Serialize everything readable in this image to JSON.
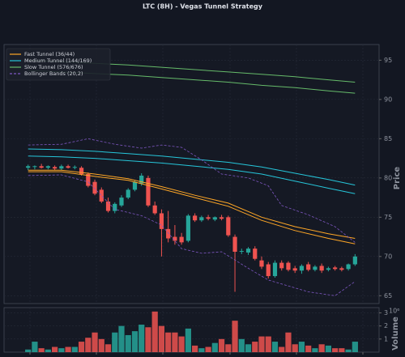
{
  "chart_data": [
    {
      "type": "candlestick",
      "title": "LTC (8H) - Vegas Tunnel Strategy",
      "ylabel": "Price",
      "ylim": [
        64,
        97
      ],
      "yticks": [
        65,
        70,
        75,
        80,
        85,
        90,
        95
      ],
      "xlim": [
        -3.6,
        52.6
      ],
      "grid": true,
      "up_color": "#26a69a",
      "down_color": "#ef5350",
      "legend": "upper left",
      "x": [
        0,
        1,
        2,
        3,
        4,
        5,
        6,
        7,
        8,
        9,
        10,
        11,
        12,
        13,
        14,
        15,
        16,
        17,
        18,
        19,
        20,
        21,
        22,
        23,
        24,
        25,
        26,
        27,
        28,
        29,
        30,
        31,
        32,
        33,
        34,
        35,
        36,
        37,
        38,
        39,
        40,
        41,
        42,
        43,
        44,
        45,
        46,
        47,
        48,
        49
      ],
      "open": [
        81.3,
        81.4,
        81.5,
        81.3,
        81.4,
        81.2,
        81.5,
        81.3,
        81.3,
        80.5,
        79.5,
        78.5,
        77,
        75.8,
        76.5,
        77.5,
        78.5,
        79.3,
        80,
        76.5,
        75.5,
        73.5,
        72.5,
        72.5,
        72,
        75.2,
        74.6,
        75,
        74.7,
        75,
        75,
        72.5,
        70.6,
        70.5,
        71,
        69.5,
        69,
        67.5,
        69.2,
        69.2,
        68.5,
        68.2,
        69,
        68.3,
        68.8,
        68.3,
        68.6,
        68.5,
        68.4,
        69
      ],
      "high": [
        81.7,
        81.6,
        81.8,
        81.6,
        81.6,
        81.7,
        81.7,
        81.6,
        81.5,
        80.7,
        79.8,
        78.8,
        77.5,
        76.9,
        77.8,
        78.7,
        79.7,
        80.6,
        80.3,
        77,
        76,
        75.8,
        74,
        73,
        75.4,
        75.5,
        75.2,
        75.3,
        75.1,
        75.3,
        75.2,
        72.8,
        71,
        71.2,
        71.3,
        70,
        69.3,
        69.5,
        69.5,
        69.4,
        68.8,
        69,
        69.3,
        68.9,
        69.1,
        68.7,
        68.8,
        68.7,
        69.1,
        70.3
      ],
      "low": [
        81,
        81.1,
        81.2,
        81.1,
        81,
        81,
        81.2,
        81.1,
        80.3,
        78.8,
        77.8,
        76.8,
        75.6,
        75.5,
        76.3,
        77.3,
        78.3,
        79,
        76.3,
        75.3,
        70,
        71.8,
        71.5,
        71.5,
        71.8,
        74.4,
        74.4,
        74.6,
        74.5,
        74.6,
        72.5,
        65.5,
        70.3,
        70.2,
        69.5,
        68.4,
        67.2,
        67.3,
        68.2,
        68.1,
        67.9,
        67.8,
        68.1,
        68.1,
        67.9,
        68.1,
        68.2,
        68.1,
        68.2,
        68.8
      ],
      "close": [
        81.5,
        81.5,
        81.3,
        81.5,
        81.2,
        81.5,
        81.3,
        81.4,
        80.5,
        79,
        78,
        77,
        75.8,
        76.7,
        77.5,
        78.5,
        79.5,
        80.3,
        76.5,
        75.5,
        73.5,
        72.3,
        72,
        71.8,
        75.2,
        74.6,
        75,
        74.8,
        75,
        74.8,
        72.7,
        70.6,
        70.7,
        71,
        69.7,
        68.7,
        67.5,
        69.2,
        68.5,
        68.3,
        68.2,
        68.8,
        68.3,
        68.7,
        68.2,
        68.5,
        68.4,
        68.3,
        69,
        70
      ],
      "series": [
        {
          "name": "Fast Tunnel (36/44)",
          "color": "#ffa726",
          "dashed": false,
          "x": [
            0,
            5,
            10,
            15,
            20,
            25,
            30,
            35,
            40,
            45,
            49
          ],
          "upper": [
            81.0,
            81.0,
            80.5,
            79.9,
            78.9,
            77.8,
            76.8,
            75.0,
            73.8,
            72.9,
            72.3
          ],
          "lower": [
            80.8,
            80.8,
            80.2,
            79.7,
            78.6,
            77.5,
            76.4,
            74.6,
            73.3,
            72.3,
            71.6
          ]
        },
        {
          "name": "Medium Tunnel (144/169)",
          "color": "#26c6da",
          "dashed": false,
          "x": [
            0,
            5,
            10,
            15,
            20,
            25,
            30,
            35,
            40,
            45,
            49
          ],
          "upper": [
            83.7,
            83.6,
            83.4,
            83.1,
            82.8,
            82.4,
            82.0,
            81.4,
            80.6,
            79.8,
            79.1
          ],
          "lower": [
            82.8,
            82.7,
            82.5,
            82.2,
            81.9,
            81.5,
            81.1,
            80.5,
            79.6,
            78.7,
            78.0
          ]
        },
        {
          "name": "Slow Tunnel (576/676)",
          "color": "#66bb6a",
          "dashed": false,
          "x": [
            0,
            5,
            10,
            15,
            20,
            25,
            30,
            35,
            40,
            45,
            49
          ],
          "upper": [
            95.0,
            94.8,
            94.6,
            94.4,
            94.1,
            93.8,
            93.5,
            93.2,
            92.9,
            92.5,
            92.2
          ],
          "lower": [
            93.7,
            93.5,
            93.3,
            93.1,
            92.8,
            92.5,
            92.2,
            91.8,
            91.5,
            91.1,
            90.8
          ]
        },
        {
          "name": "Bollinger Bands (20,2)",
          "color": "#7e57c2",
          "dashed": true,
          "x": [
            0,
            5,
            9,
            13,
            17,
            20,
            23,
            26,
            29,
            33,
            36,
            38,
            42,
            46,
            49
          ],
          "upper": [
            84.2,
            84.3,
            85.0,
            84.3,
            83.8,
            84.2,
            83.9,
            82.3,
            80.5,
            80.0,
            79.0,
            76.5,
            75.3,
            73.8,
            71.8
          ],
          "lower": [
            80.3,
            80.4,
            79.5,
            76.0,
            75.2,
            74.0,
            71.0,
            70.4,
            70.6,
            68.5,
            67.0,
            66.5,
            65.5,
            65.0,
            66.8
          ]
        }
      ]
    },
    {
      "type": "bar",
      "ylabel": "Volume",
      "scale_label": "10⁶",
      "ylim": [
        0,
        3.4
      ],
      "yticks": [
        1,
        2,
        3
      ],
      "values": [
        0.2,
        0.8,
        0.3,
        0.2,
        0.4,
        0.3,
        0.4,
        0.4,
        0.8,
        1.1,
        1.5,
        1.0,
        0.6,
        1.5,
        2.0,
        1.3,
        1.6,
        2.1,
        1.9,
        3.1,
        2.0,
        1.5,
        1.5,
        1.2,
        1.8,
        0.5,
        0.3,
        0.4,
        0.7,
        1.0,
        0.6,
        2.4,
        1.0,
        0.6,
        0.8,
        1.2,
        1.2,
        0.8,
        0.4,
        1.5,
        0.6,
        0.8,
        0.5,
        0.3,
        0.6,
        0.5,
        0.3,
        0.3,
        0.2,
        0.8
      ]
    }
  ]
}
